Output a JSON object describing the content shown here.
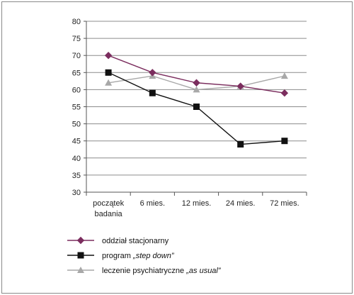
{
  "chart_data": {
    "type": "line",
    "categories": [
      "początek badania",
      "6 mies.",
      "12 mies.",
      "24 mies.",
      "72 mies."
    ],
    "category_lines": [
      [
        "początek",
        "badania"
      ],
      [
        "6 mies."
      ],
      [
        "12 mies."
      ],
      [
        "24 mies."
      ],
      [
        "72 mies."
      ]
    ],
    "ylim": [
      30,
      80
    ],
    "yticks": [
      30,
      35,
      40,
      45,
      50,
      55,
      60,
      65,
      70,
      75,
      80
    ],
    "grid": "horizontal",
    "legend_position": "bottom",
    "series": [
      {
        "name": "oddział stacjonarny",
        "name_parts": [
          {
            "text": "oddział stacjonarny",
            "italic": false
          }
        ],
        "values": [
          70,
          65,
          62,
          61,
          59
        ],
        "color": "#7b2d5e",
        "marker": "diamond"
      },
      {
        "name": "program „step down”",
        "name_parts": [
          {
            "text": "program ",
            "italic": false
          },
          {
            "text": "„step down”",
            "italic": true
          }
        ],
        "values": [
          65,
          59,
          55,
          44,
          45
        ],
        "color": "#111111",
        "marker": "square"
      },
      {
        "name": "leczenie psychiatryczne „as usual”",
        "name_parts": [
          {
            "text": "leczenie psychiatryczne ",
            "italic": false
          },
          {
            "text": "„as usual”",
            "italic": true
          }
        ],
        "values": [
          62,
          64,
          60,
          61,
          64
        ],
        "color": "#a8a8a8",
        "marker": "triangle"
      }
    ]
  }
}
